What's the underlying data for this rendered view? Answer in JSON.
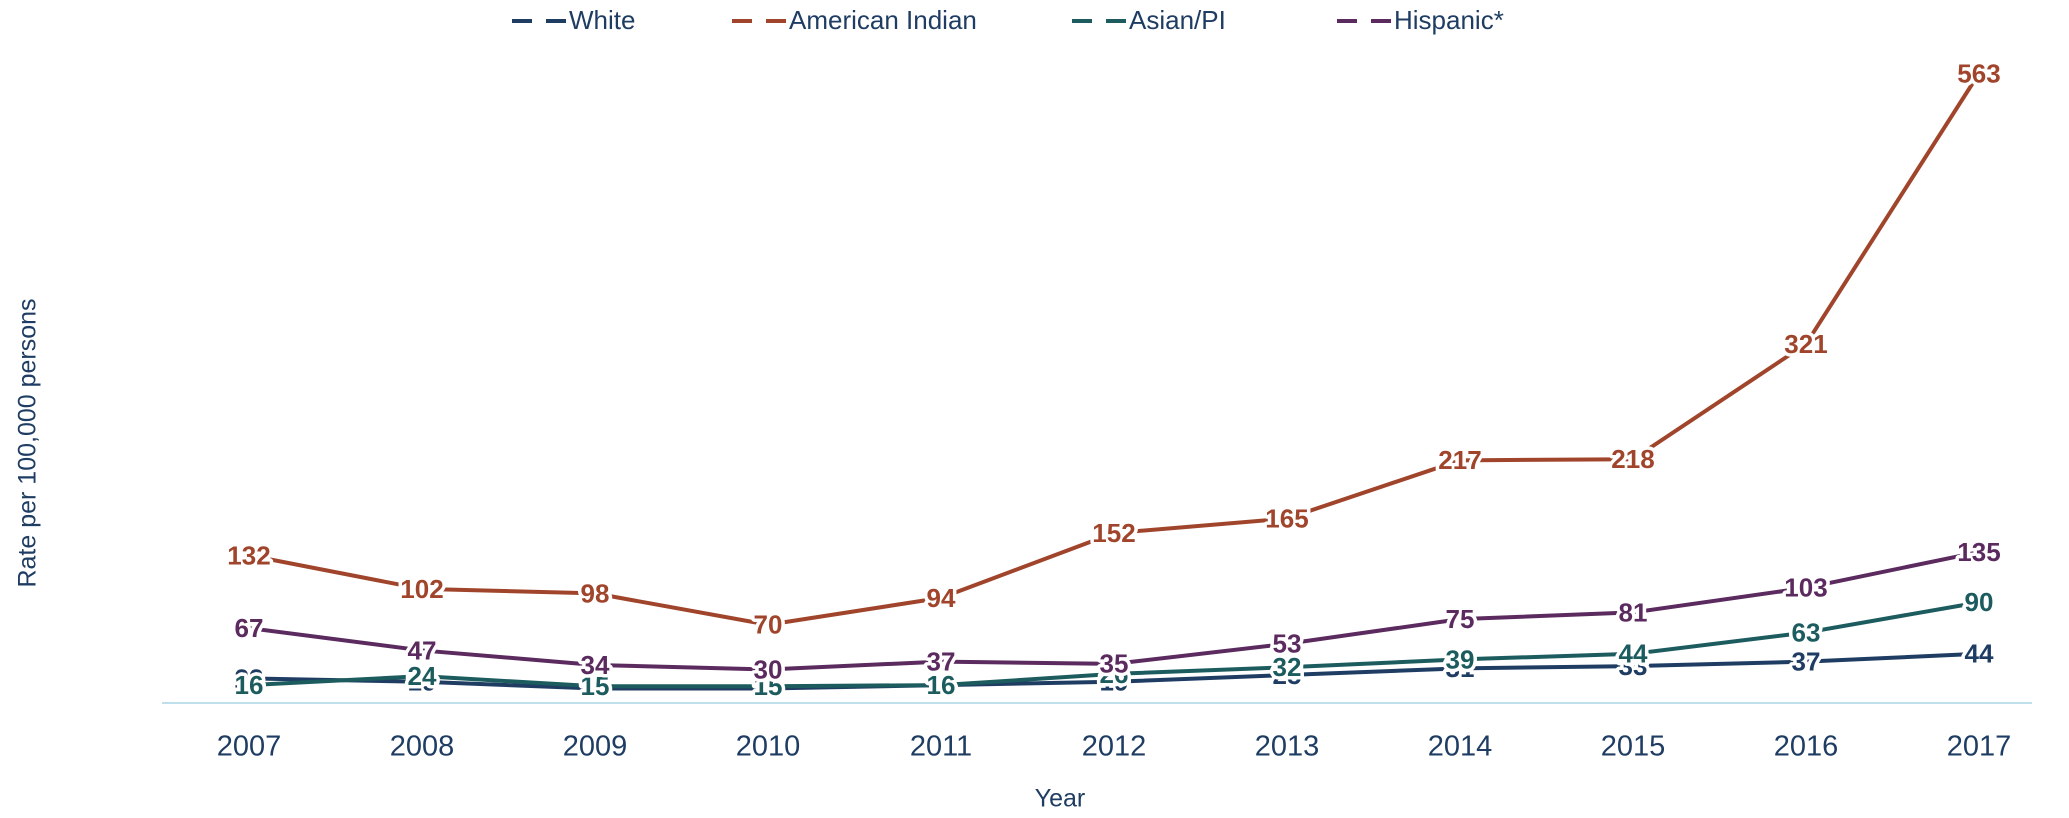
{
  "chart_data": {
    "type": "line",
    "x_label": "Year",
    "y_label": "Rate per 100,000 persons",
    "categories": [
      "2007",
      "2008",
      "2009",
      "2010",
      "2011",
      "2012",
      "2013",
      "2014",
      "2015",
      "2016",
      "2017"
    ],
    "ylim": [
      0,
      600
    ],
    "series": [
      {
        "name": "White",
        "color": "#1f3d63",
        "values": [
          22,
          19,
          13,
          13,
          16,
          19,
          25,
          31,
          33,
          37,
          44
        ]
      },
      {
        "name": "American Indian",
        "color": "#a0452b",
        "values": [
          132,
          102,
          98,
          70,
          94,
          152,
          165,
          217,
          218,
          321,
          563
        ]
      },
      {
        "name": "Asian/PI",
        "color": "#1c5c5f",
        "values": [
          16,
          24,
          15,
          15,
          16,
          26,
          32,
          39,
          44,
          63,
          90
        ]
      },
      {
        "name": "Hispanic*",
        "color": "#5b2a5e",
        "values": [
          67,
          47,
          34,
          30,
          37,
          35,
          53,
          75,
          81,
          103,
          135
        ]
      }
    ]
  }
}
